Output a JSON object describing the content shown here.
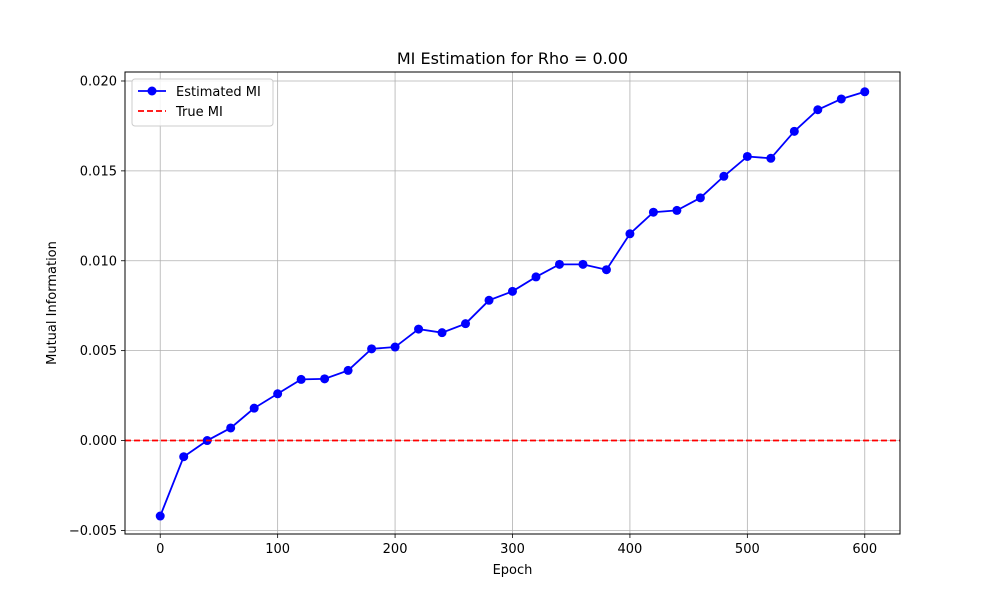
{
  "chart_data": {
    "type": "line",
    "title": "MI Estimation for Rho = 0.00",
    "xlabel": "Epoch",
    "ylabel": "Mutual Information",
    "xlim": [
      -30,
      630
    ],
    "ylim": [
      -0.0052,
      0.0205
    ],
    "xticks": [
      0,
      100,
      200,
      300,
      400,
      500,
      600
    ],
    "xtick_labels": [
      "0",
      "100",
      "200",
      "300",
      "400",
      "500",
      "600"
    ],
    "yticks": [
      -0.005,
      0.0,
      0.005,
      0.01,
      0.015,
      0.02
    ],
    "ytick_labels": [
      "−0.005",
      "0.000",
      "0.005",
      "0.010",
      "0.015",
      "0.020"
    ],
    "grid": true,
    "legend_position": "top-left",
    "series": [
      {
        "name": "Estimated MI",
        "color": "#0000ff",
        "style": "solid",
        "marker": "circle",
        "x": [
          0,
          20,
          40,
          60,
          80,
          100,
          120,
          140,
          160,
          180,
          200,
          220,
          240,
          260,
          280,
          300,
          320,
          340,
          360,
          380,
          400,
          420,
          440,
          460,
          480,
          500,
          520,
          540,
          560,
          580,
          600
        ],
        "y": [
          -0.0042,
          -0.0009,
          0.0,
          0.0007,
          0.0018,
          0.0026,
          0.0034,
          0.00343,
          0.0039,
          0.0051,
          0.0052,
          0.0062,
          0.006,
          0.0065,
          0.0078,
          0.0083,
          0.0091,
          0.0098,
          0.0098,
          0.0095,
          0.0115,
          0.0127,
          0.0128,
          0.0135,
          0.0147,
          0.0158,
          0.0157,
          0.0172,
          0.0184,
          0.019,
          0.0194
        ]
      },
      {
        "name": "True MI",
        "color": "#ff0000",
        "style": "dashed",
        "marker": "none",
        "hline": 0.0
      }
    ]
  }
}
